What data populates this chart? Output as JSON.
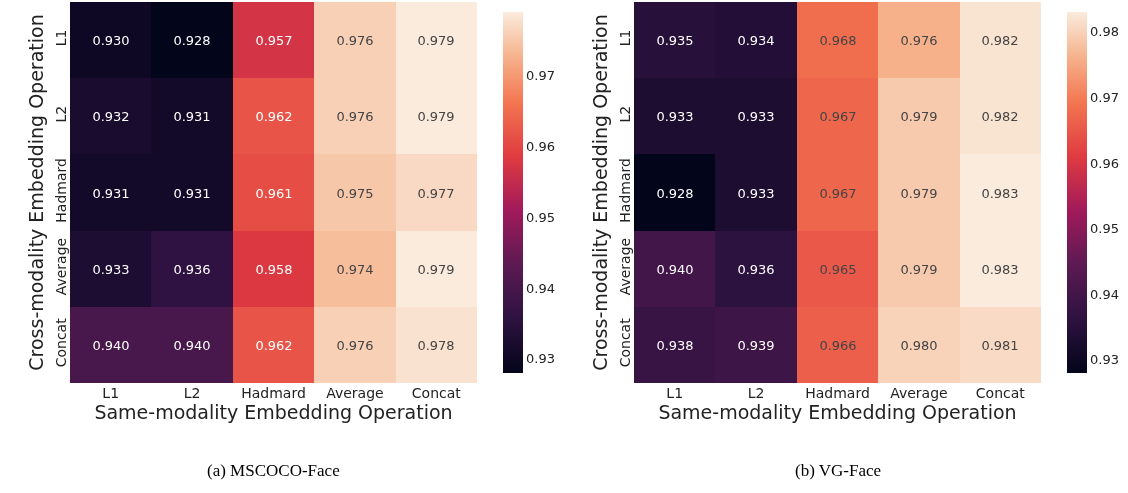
{
  "chart_data": [
    {
      "type": "heatmap",
      "categories": [
        "L1",
        "L2",
        "Hadmard",
        "Average",
        "Concat"
      ],
      "y_categories": [
        "L1",
        "L2",
        "Hadmard",
        "Average",
        "Concat"
      ],
      "xlabel": "Same-modality Embedding Operation",
      "ylabel": "Cross-modality Embedding Operation",
      "cells": [
        [
          0.93,
          0.928,
          0.957,
          0.976,
          0.979
        ],
        [
          0.932,
          0.931,
          0.962,
          0.976,
          0.979
        ],
        [
          0.931,
          0.931,
          0.961,
          0.975,
          0.977
        ],
        [
          0.933,
          0.936,
          0.958,
          0.974,
          0.979
        ],
        [
          0.94,
          0.94,
          0.962,
          0.976,
          0.978
        ]
      ],
      "cell_labels": [
        [
          "0.930",
          "0.928",
          "0.957",
          "0.976",
          "0.979"
        ],
        [
          "0.932",
          "0.931",
          "0.962",
          "0.976",
          "0.979"
        ],
        [
          "0.931",
          "0.931",
          "0.961",
          "0.975",
          "0.977"
        ],
        [
          "0.933",
          "0.936",
          "0.958",
          "0.974",
          "0.979"
        ],
        [
          "0.940",
          "0.940",
          "0.962",
          "0.976",
          "0.978"
        ]
      ],
      "data_labels": true,
      "clim": [
        0.928,
        0.979
      ],
      "cticks": [
        0.93,
        0.94,
        0.95,
        0.96,
        0.97
      ],
      "annotations": [
        "(a) MSCOCO-Face"
      ]
    },
    {
      "type": "heatmap",
      "categories": [
        "L1",
        "L2",
        "Hadmard",
        "Average",
        "Concat"
      ],
      "y_categories": [
        "L1",
        "L2",
        "Hadmard",
        "Average",
        "Concat"
      ],
      "xlabel": "Same-modality Embedding Operation",
      "ylabel": "Cross-modality Embedding Operation",
      "cells": [
        [
          0.935,
          0.934,
          0.968,
          0.976,
          0.982
        ],
        [
          0.933,
          0.933,
          0.967,
          0.979,
          0.982
        ],
        [
          0.928,
          0.933,
          0.967,
          0.979,
          0.983
        ],
        [
          0.94,
          0.936,
          0.965,
          0.979,
          0.983
        ],
        [
          0.938,
          0.939,
          0.966,
          0.98,
          0.981
        ]
      ],
      "cell_labels": [
        [
          "0.935",
          "0.934",
          "0.968",
          "0.976",
          "0.982"
        ],
        [
          "0.933",
          "0.933",
          "0.967",
          "0.979",
          "0.982"
        ],
        [
          "0.928",
          "0.933",
          "0.967",
          "0.979",
          "0.983"
        ],
        [
          "0.940",
          "0.936",
          "0.965",
          "0.979",
          "0.983"
        ],
        [
          "0.938",
          "0.939",
          "0.966",
          "0.980",
          "0.981"
        ]
      ],
      "data_labels": true,
      "clim": [
        0.928,
        0.983
      ],
      "cticks": [
        0.93,
        0.94,
        0.95,
        0.96,
        0.97,
        0.98
      ],
      "annotations": [
        "(b) VG-Face"
      ]
    }
  ]
}
